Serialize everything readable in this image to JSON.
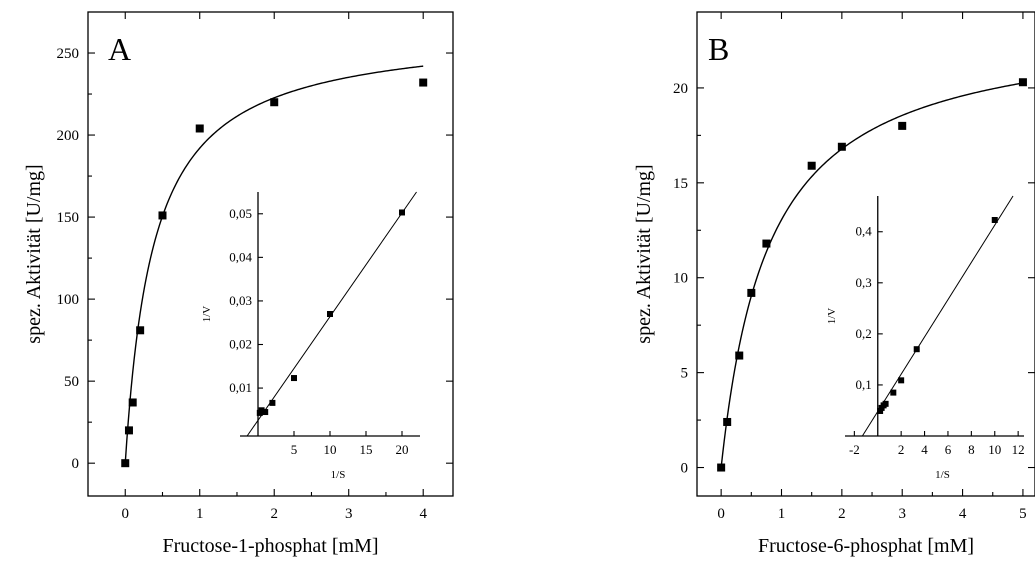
{
  "chart_data": [
    {
      "type": "scatter",
      "panel_label": "A",
      "xlabel": "Fructose-1-phosphat [mM]",
      "ylabel": "spez. Aktivität [U/mg]",
      "xlim": [
        -0.5,
        4.4
      ],
      "ylim": [
        -20,
        275
      ],
      "xticks": [
        0,
        1,
        2,
        3,
        4
      ],
      "yticks": [
        0,
        50,
        100,
        150,
        200,
        250
      ],
      "series": [
        {
          "x": [
            0,
            0.05,
            0.1,
            0.2,
            0.5,
            1,
            2,
            4
          ],
          "y": [
            0,
            20,
            37,
            81,
            151,
            204,
            220,
            232
          ]
        }
      ],
      "fit": {
        "vmax": 265,
        "km": 0.38
      },
      "inset": {
        "type": "scatter",
        "xlabel": "1/S",
        "ylabel": "1/V",
        "xlim": [
          -2.5,
          22.5
        ],
        "ylim": [
          -0.001,
          0.055
        ],
        "xticks": [
          "5",
          "10",
          "15",
          "20"
        ],
        "yticks": [
          "0,01",
          "0,02",
          "0,03",
          "0,04",
          "0,05"
        ],
        "xtick_values": [
          5,
          10,
          15,
          20
        ],
        "ytick_values": [
          0.01,
          0.02,
          0.03,
          0.04,
          0.05
        ],
        "x": [
          1,
          2,
          5,
          10,
          20,
          0.5,
          0.25
        ],
        "y": [
          0.0045,
          0.0066,
          0.0123,
          0.027,
          0.0503,
          0.0049,
          0.0043
        ],
        "fit_line": {
          "slope": 0.00238,
          "intercept": 0.0026
        }
      }
    },
    {
      "type": "scatter",
      "panel_label": "B",
      "xlabel": "Fructose-6-phosphat [mM]",
      "ylabel": "spez. Aktivität [U/mg]",
      "xlim": [
        -0.4,
        5.2
      ],
      "ylim": [
        -1.5,
        24
      ],
      "xticks": [
        0,
        1,
        2,
        3,
        4,
        5
      ],
      "yticks": [
        0,
        5,
        10,
        15,
        20
      ],
      "series": [
        {
          "x": [
            0,
            0.1,
            0.3,
            0.5,
            0.75,
            1.5,
            2,
            3,
            5
          ],
          "y": [
            0,
            2.4,
            5.9,
            9.2,
            11.8,
            15.9,
            16.9,
            18,
            20.3
          ]
        }
      ],
      "fit": {
        "vmax": 23.5,
        "km": 0.8
      },
      "inset": {
        "type": "scatter",
        "xlabel": "1/S",
        "ylabel": "1/V",
        "xlim": [
          -2.8,
          12.5
        ],
        "ylim": [
          0,
          0.47
        ],
        "xticks": [
          "-2",
          "2",
          "4",
          "6",
          "8",
          "10",
          "12"
        ],
        "yticks": [
          "0,1",
          "0,2",
          "0,3",
          "0,4"
        ],
        "xtick_values": [
          -2,
          2,
          4,
          6,
          8,
          10,
          12
        ],
        "ytick_values": [
          0.1,
          0.2,
          0.3,
          0.4
        ],
        "x": [
          0.2,
          0.33,
          0.5,
          0.67,
          1.33,
          2,
          3.33,
          10
        ],
        "y": [
          0.049,
          0.055,
          0.06,
          0.063,
          0.085,
          0.109,
          0.17,
          0.423
        ],
        "fit_line": {
          "slope": 0.0365,
          "intercept": 0.048
        }
      }
    }
  ]
}
